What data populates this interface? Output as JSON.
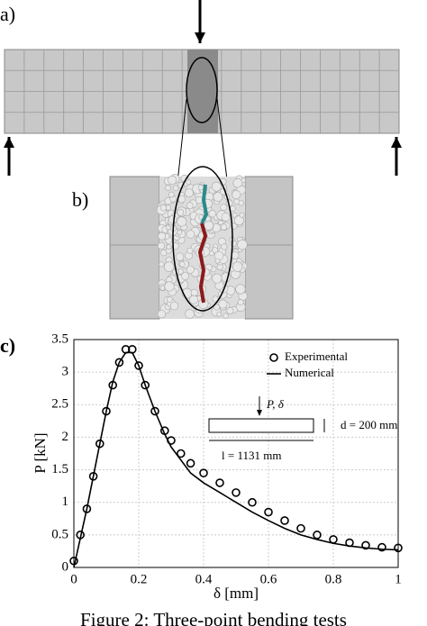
{
  "panels": {
    "a": "a)",
    "b": "b)",
    "c": "c)"
  },
  "caption": "Figure 2: Three-point bending tests",
  "chart_data": {
    "type": "line",
    "x_label": "δ [mm]",
    "y_label": "P [kN]",
    "x": [
      0,
      0.02,
      0.04,
      0.06,
      0.08,
      0.1,
      0.12,
      0.14,
      0.16,
      0.18,
      0.2,
      0.22,
      0.25,
      0.28,
      0.3,
      0.33,
      0.36,
      0.4,
      0.45,
      0.5,
      0.55,
      0.6,
      0.65,
      0.7,
      0.75,
      0.8,
      0.85,
      0.9,
      0.95,
      1.0
    ],
    "series": [
      {
        "name": "Experimental",
        "color": "#000000",
        "marker": "circle",
        "values": [
          0.1,
          0.5,
          0.9,
          1.4,
          1.9,
          2.4,
          2.8,
          3.15,
          3.35,
          3.35,
          3.1,
          2.8,
          2.4,
          2.1,
          1.95,
          1.75,
          1.6,
          1.45,
          1.3,
          1.15,
          1.0,
          0.85,
          0.72,
          0.6,
          0.5,
          0.43,
          0.38,
          0.34,
          0.31,
          0.3
        ]
      },
      {
        "name": "Numerical",
        "color": "#000000",
        "marker": "line",
        "values": [
          0,
          0.45,
          0.9,
          1.4,
          1.9,
          2.4,
          2.85,
          3.15,
          3.3,
          3.3,
          3.1,
          2.8,
          2.4,
          2.05,
          1.85,
          1.65,
          1.45,
          1.3,
          1.15,
          1.0,
          0.85,
          0.72,
          0.6,
          0.5,
          0.43,
          0.37,
          0.33,
          0.3,
          0.28,
          0.27
        ]
      }
    ],
    "xlim": [
      0,
      1
    ],
    "xticks": [
      0,
      0.2,
      0.4,
      0.6,
      0.8,
      1
    ],
    "ylim": [
      0,
      3.5
    ],
    "yticks": [
      0,
      0.5,
      1,
      1.5,
      2,
      2.5,
      3,
      3.5
    ],
    "grid": true,
    "legend": "upper right",
    "annotations": [
      "P, δ",
      "d = 200 mm",
      "l = 1131 mm"
    ]
  }
}
